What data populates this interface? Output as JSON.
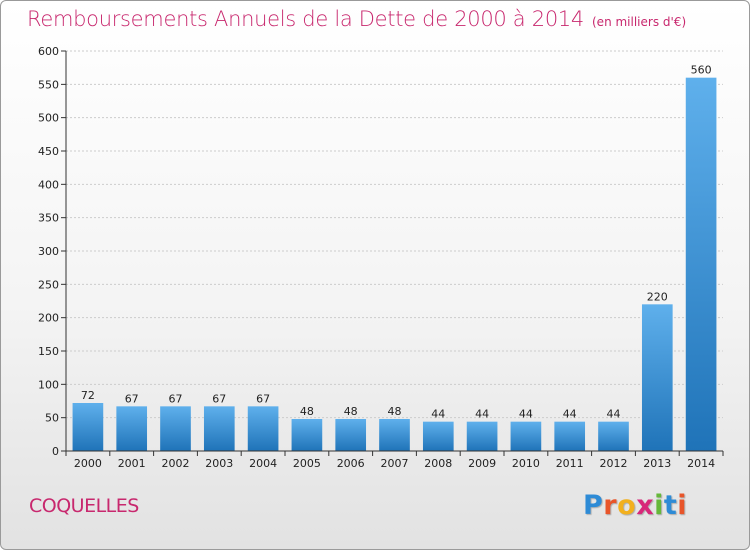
{
  "header": {
    "title": "Remboursements Annuels de la Dette de 2000 à 2014",
    "unit": "(en milliers d'€)"
  },
  "footer": {
    "place": "COQUELLES",
    "brand_letters": [
      {
        "ch": "P",
        "color": "#2e8bd6"
      },
      {
        "ch": "r",
        "color": "#e8552a"
      },
      {
        "ch": "o",
        "color": "#f2b01e"
      },
      {
        "ch": "x",
        "color": "#d8287a"
      },
      {
        "ch": "i",
        "color": "#66b83a"
      },
      {
        "ch": "t",
        "color": "#2e8bd6"
      },
      {
        "ch": "i",
        "color": "#e8552a"
      }
    ]
  },
  "colors": {
    "title": "#c8286e",
    "bar_top": "#5fb0ec",
    "bar_bottom": "#1f73b8",
    "axis": "#333333",
    "grid": "#cccccc"
  },
  "chart_data": {
    "type": "bar",
    "title": "Remboursements Annuels de la Dette de 2000 à 2014",
    "subtitle": "(en milliers d'€)",
    "xlabel": "",
    "ylabel": "",
    "categories": [
      "2000",
      "2001",
      "2002",
      "2003",
      "2004",
      "2005",
      "2006",
      "2007",
      "2008",
      "2009",
      "2010",
      "2011",
      "2012",
      "2013",
      "2014"
    ],
    "values": [
      72,
      67,
      67,
      67,
      67,
      48,
      48,
      48,
      44,
      44,
      44,
      44,
      44,
      220,
      560
    ],
    "ylim": [
      0,
      600
    ],
    "yticks": [
      0,
      50,
      100,
      150,
      200,
      250,
      300,
      350,
      400,
      450,
      500,
      550,
      600
    ],
    "grid": true,
    "legend": "none"
  }
}
